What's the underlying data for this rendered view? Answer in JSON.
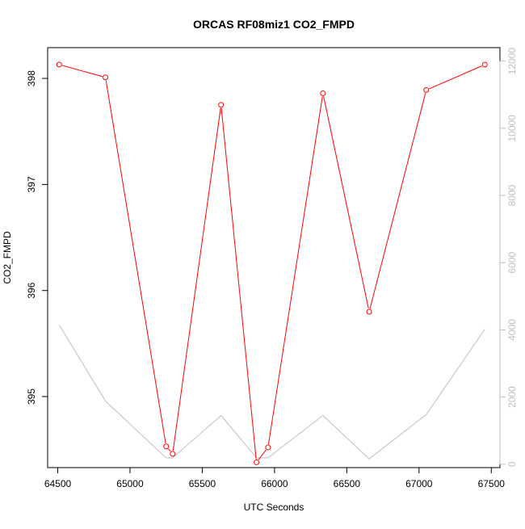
{
  "chart_data": {
    "type": "line",
    "title": "ORCAS RF08miz1 CO2_FMPD",
    "xlabel": "UTC Seconds",
    "ylabel": "CO2_FMPD",
    "xlim": [
      64430,
      67560
    ],
    "ylim": [
      394.33,
      398.29
    ],
    "ylim_right": [
      -100,
      12400
    ],
    "x_ticks": [
      64500,
      65000,
      65500,
      66000,
      66500,
      67000,
      67500
    ],
    "y_ticks": [
      395,
      396,
      397,
      398
    ],
    "y_right_ticks": [
      0,
      2000,
      4000,
      6000,
      8000,
      10000,
      12000
    ],
    "grid": false,
    "series": [
      {
        "axis": "left",
        "color": "#ff0000",
        "markers": true,
        "x": [
          64510,
          64830,
          65250,
          65295,
          65630,
          65875,
          65955,
          66335,
          66655,
          67050,
          67455
        ],
        "y": [
          398.13,
          398.01,
          394.53,
          394.46,
          397.75,
          394.38,
          394.52,
          397.86,
          395.8,
          397.89,
          398.13
        ]
      },
      {
        "axis": "right",
        "color": "#bebebe",
        "markers": false,
        "x": [
          64510,
          64830,
          65250,
          65295,
          65630,
          65875,
          65955,
          66335,
          66655,
          67050,
          67455
        ],
        "y": [
          4150,
          1880,
          190,
          190,
          1450,
          190,
          190,
          1450,
          160,
          1480,
          4020
        ]
      }
    ]
  }
}
